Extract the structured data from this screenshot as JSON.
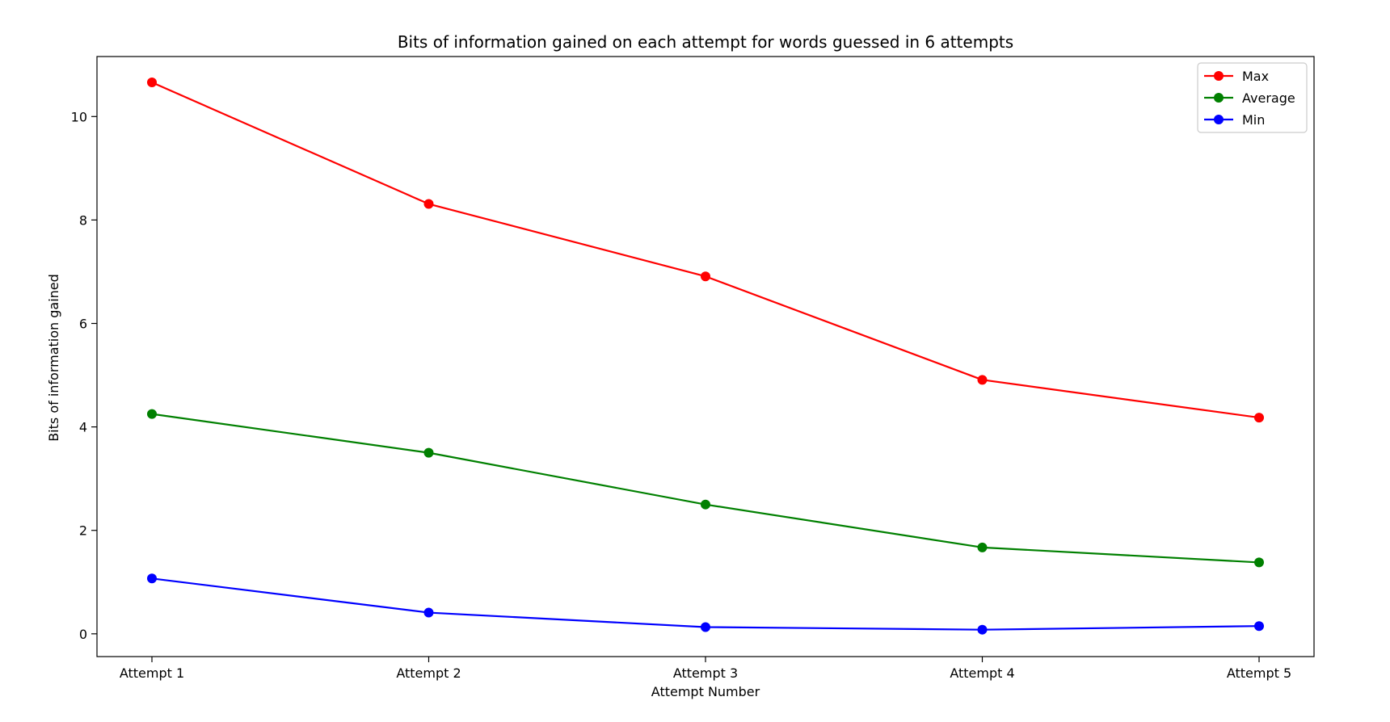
{
  "chart_data": {
    "type": "line",
    "title": "Bits of information gained on each attempt for words guessed in 6 attempts",
    "xlabel": "Attempt Number",
    "ylabel": "Bits of information gained",
    "categories": [
      "Attempt 1",
      "Attempt 2",
      "Attempt 3",
      "Attempt 4",
      "Attempt 5"
    ],
    "ylim": [
      -0.44,
      11.16
    ],
    "yticks": [
      0,
      2,
      4,
      6,
      8,
      10
    ],
    "grid": false,
    "legend_position": "top-right",
    "series": [
      {
        "name": "Max",
        "color": "#ff0000",
        "values": [
          10.66,
          8.31,
          6.91,
          4.91,
          4.18
        ]
      },
      {
        "name": "Average",
        "color": "#008000",
        "values": [
          4.25,
          3.5,
          2.5,
          1.67,
          1.38
        ]
      },
      {
        "name": "Min",
        "color": "#0000ff",
        "values": [
          1.07,
          0.41,
          0.13,
          0.08,
          0.15
        ]
      }
    ]
  }
}
